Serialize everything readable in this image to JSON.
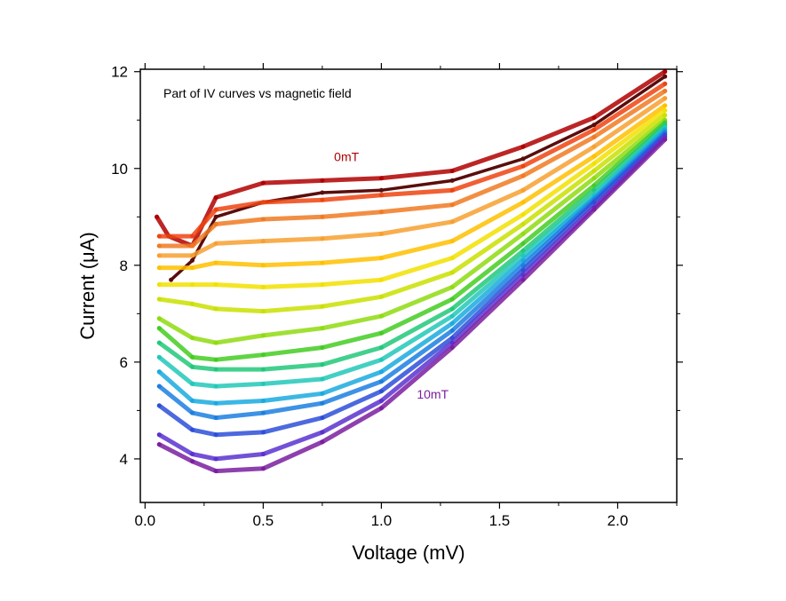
{
  "chart_data": {
    "type": "scatter",
    "title": "Part of IV curves vs magnetic field",
    "xlabel": "Voltage (mV)",
    "ylabel": "Current (μA)",
    "xlim": [
      -0.02,
      2.25
    ],
    "ylim": [
      3.1,
      12.05
    ],
    "xticks": [
      "0.0",
      "0.5",
      "1.0",
      "1.5",
      "2.0"
    ],
    "xtick_values": [
      0.0,
      0.5,
      1.0,
      1.5,
      2.0
    ],
    "yticks": [
      "4",
      "6",
      "8",
      "10",
      "12"
    ],
    "ytick_values": [
      4,
      6,
      8,
      10,
      12
    ],
    "grid": false,
    "annotations": [
      {
        "text": "0mT",
        "x": 0.8,
        "y": 10.15,
        "color": "#b00000"
      },
      {
        "text": "10mT",
        "x": 1.15,
        "y": 5.25,
        "color": "#7a1fa0"
      }
    ],
    "series": [
      {
        "color": "#b00000",
        "points": [
          [
            0.05,
            9.0
          ],
          [
            0.1,
            8.6
          ],
          [
            0.2,
            8.4
          ],
          [
            0.3,
            9.4
          ],
          [
            0.5,
            9.7
          ],
          [
            0.75,
            9.75
          ],
          [
            1.0,
            9.8
          ],
          [
            1.3,
            9.95
          ],
          [
            1.6,
            10.45
          ],
          [
            1.9,
            11.05
          ],
          [
            2.2,
            12.0
          ]
        ]
      },
      {
        "color": "#5a0d0d",
        "points": [
          [
            0.11,
            7.7
          ],
          [
            0.2,
            8.1
          ],
          [
            0.3,
            9.0
          ],
          [
            0.5,
            9.3
          ],
          [
            0.75,
            9.5
          ],
          [
            1.0,
            9.55
          ],
          [
            1.3,
            9.75
          ],
          [
            1.6,
            10.2
          ],
          [
            1.9,
            10.9
          ],
          [
            2.2,
            11.9
          ]
        ]
      },
      {
        "color": "#ee4411",
        "points": [
          [
            0.06,
            8.6
          ],
          [
            0.2,
            8.6
          ],
          [
            0.3,
            9.15
          ],
          [
            0.5,
            9.3
          ],
          [
            0.75,
            9.35
          ],
          [
            1.0,
            9.45
          ],
          [
            1.3,
            9.55
          ],
          [
            1.6,
            10.05
          ],
          [
            1.9,
            10.8
          ],
          [
            2.2,
            11.75
          ]
        ]
      },
      {
        "color": "#f07a22",
        "points": [
          [
            0.06,
            8.4
          ],
          [
            0.2,
            8.4
          ],
          [
            0.3,
            8.85
          ],
          [
            0.5,
            8.95
          ],
          [
            0.75,
            9.0
          ],
          [
            1.0,
            9.1
          ],
          [
            1.3,
            9.25
          ],
          [
            1.6,
            9.85
          ],
          [
            1.9,
            10.65
          ],
          [
            2.2,
            11.6
          ]
        ]
      },
      {
        "color": "#f7a030",
        "points": [
          [
            0.06,
            8.2
          ],
          [
            0.2,
            8.2
          ],
          [
            0.3,
            8.45
          ],
          [
            0.5,
            8.5
          ],
          [
            0.75,
            8.55
          ],
          [
            1.0,
            8.65
          ],
          [
            1.3,
            8.9
          ],
          [
            1.6,
            9.55
          ],
          [
            1.9,
            10.45
          ],
          [
            2.2,
            11.45
          ]
        ]
      },
      {
        "color": "#ffc000",
        "points": [
          [
            0.06,
            7.95
          ],
          [
            0.2,
            7.95
          ],
          [
            0.3,
            8.05
          ],
          [
            0.5,
            8.0
          ],
          [
            0.75,
            8.05
          ],
          [
            1.0,
            8.15
          ],
          [
            1.3,
            8.5
          ],
          [
            1.6,
            9.3
          ],
          [
            1.9,
            10.25
          ],
          [
            2.2,
            11.3
          ]
        ]
      },
      {
        "color": "#f2e000",
        "points": [
          [
            0.06,
            7.6
          ],
          [
            0.2,
            7.6
          ],
          [
            0.3,
            7.6
          ],
          [
            0.5,
            7.55
          ],
          [
            0.75,
            7.6
          ],
          [
            1.0,
            7.7
          ],
          [
            1.3,
            8.15
          ],
          [
            1.6,
            9.05
          ],
          [
            1.9,
            10.1
          ],
          [
            2.2,
            11.2
          ]
        ]
      },
      {
        "color": "#c9e000",
        "points": [
          [
            0.06,
            7.3
          ],
          [
            0.2,
            7.2
          ],
          [
            0.3,
            7.1
          ],
          [
            0.5,
            7.05
          ],
          [
            0.75,
            7.15
          ],
          [
            1.0,
            7.35
          ],
          [
            1.3,
            7.85
          ],
          [
            1.6,
            8.85
          ],
          [
            1.9,
            9.95
          ],
          [
            2.2,
            11.1
          ]
        ]
      },
      {
        "color": "#8fdb10",
        "points": [
          [
            0.06,
            6.9
          ],
          [
            0.2,
            6.5
          ],
          [
            0.3,
            6.4
          ],
          [
            0.5,
            6.55
          ],
          [
            0.75,
            6.7
          ],
          [
            1.0,
            6.95
          ],
          [
            1.3,
            7.55
          ],
          [
            1.6,
            8.65
          ],
          [
            1.9,
            9.8
          ],
          [
            2.2,
            11.0
          ]
        ]
      },
      {
        "color": "#44cc22",
        "points": [
          [
            0.06,
            6.7
          ],
          [
            0.2,
            6.1
          ],
          [
            0.3,
            6.05
          ],
          [
            0.5,
            6.15
          ],
          [
            0.75,
            6.3
          ],
          [
            1.0,
            6.6
          ],
          [
            1.3,
            7.3
          ],
          [
            1.6,
            8.45
          ],
          [
            1.9,
            9.65
          ],
          [
            2.2,
            10.95
          ]
        ]
      },
      {
        "color": "#22c87a",
        "points": [
          [
            0.06,
            6.4
          ],
          [
            0.2,
            5.9
          ],
          [
            0.3,
            5.85
          ],
          [
            0.5,
            5.85
          ],
          [
            0.75,
            5.95
          ],
          [
            1.0,
            6.3
          ],
          [
            1.3,
            7.1
          ],
          [
            1.6,
            8.3
          ],
          [
            1.9,
            9.55
          ],
          [
            2.2,
            10.9
          ]
        ]
      },
      {
        "color": "#22c8b8",
        "points": [
          [
            0.06,
            6.1
          ],
          [
            0.2,
            5.55
          ],
          [
            0.3,
            5.5
          ],
          [
            0.5,
            5.55
          ],
          [
            0.75,
            5.65
          ],
          [
            1.0,
            6.05
          ],
          [
            1.3,
            6.95
          ],
          [
            1.6,
            8.2
          ],
          [
            1.9,
            9.45
          ],
          [
            2.2,
            10.85
          ]
        ]
      },
      {
        "color": "#1aaadf",
        "points": [
          [
            0.06,
            5.8
          ],
          [
            0.2,
            5.2
          ],
          [
            0.3,
            5.15
          ],
          [
            0.5,
            5.2
          ],
          [
            0.75,
            5.35
          ],
          [
            1.0,
            5.8
          ],
          [
            1.3,
            6.8
          ],
          [
            1.6,
            8.1
          ],
          [
            1.9,
            9.4
          ],
          [
            2.2,
            10.8
          ]
        ]
      },
      {
        "color": "#1c7fe0",
        "points": [
          [
            0.06,
            5.5
          ],
          [
            0.2,
            4.95
          ],
          [
            0.3,
            4.85
          ],
          [
            0.5,
            4.95
          ],
          [
            0.75,
            5.15
          ],
          [
            1.0,
            5.6
          ],
          [
            1.3,
            6.65
          ],
          [
            1.6,
            8.0
          ],
          [
            1.9,
            9.35
          ],
          [
            2.2,
            10.75
          ]
        ]
      },
      {
        "color": "#2d4fd8",
        "points": [
          [
            0.06,
            5.1
          ],
          [
            0.2,
            4.6
          ],
          [
            0.3,
            4.5
          ],
          [
            0.5,
            4.55
          ],
          [
            0.75,
            4.85
          ],
          [
            1.0,
            5.4
          ],
          [
            1.3,
            6.5
          ],
          [
            1.6,
            7.9
          ],
          [
            1.9,
            9.3
          ],
          [
            2.2,
            10.7
          ]
        ]
      },
      {
        "color": "#5a32d0",
        "points": [
          [
            0.06,
            4.5
          ],
          [
            0.2,
            4.1
          ],
          [
            0.3,
            4.0
          ],
          [
            0.5,
            4.1
          ],
          [
            0.75,
            4.55
          ],
          [
            1.0,
            5.2
          ],
          [
            1.3,
            6.4
          ],
          [
            1.6,
            7.8
          ],
          [
            1.9,
            9.2
          ],
          [
            2.2,
            10.65
          ]
        ]
      },
      {
        "color": "#7a1fa0",
        "points": [
          [
            0.06,
            4.3
          ],
          [
            0.2,
            3.95
          ],
          [
            0.3,
            3.75
          ],
          [
            0.5,
            3.8
          ],
          [
            0.75,
            4.35
          ],
          [
            1.0,
            5.05
          ],
          [
            1.3,
            6.3
          ],
          [
            1.6,
            7.7
          ],
          [
            1.9,
            9.15
          ],
          [
            2.2,
            10.6
          ]
        ]
      }
    ]
  }
}
